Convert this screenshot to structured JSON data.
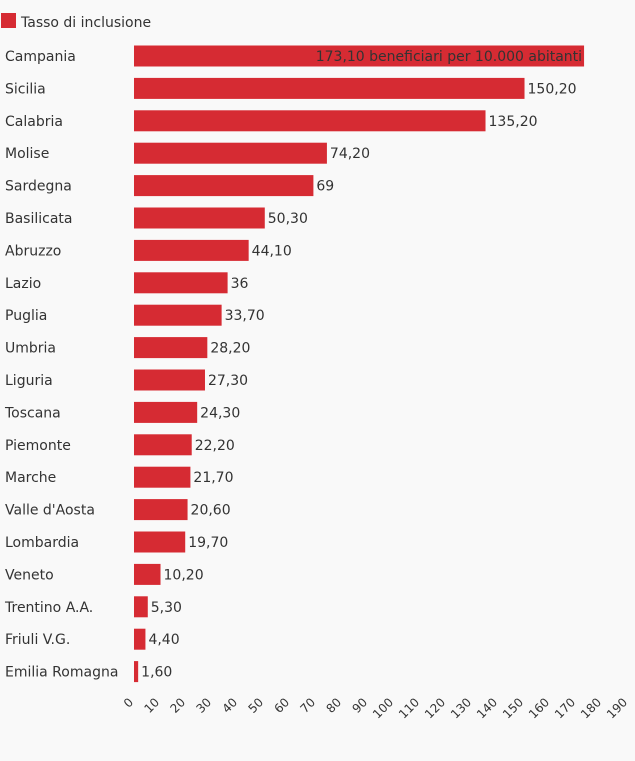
{
  "chart_data": {
    "type": "bar",
    "orientation": "horizontal",
    "legend": {
      "entries": [
        "Tasso di inclusione"
      ],
      "placement": "top-left"
    },
    "colors": {
      "bar": "#d62b33",
      "text": "#333333",
      "background": "#f9f9f9"
    },
    "categories": [
      "Campania",
      "Sicilia",
      "Calabria",
      "Molise",
      "Sardegna",
      "Basilicata",
      "Abruzzo",
      "Lazio",
      "Puglia",
      "Umbria",
      "Liguria",
      "Toscana",
      "Piemonte",
      "Marche",
      "Valle d'Aosta",
      "Lombardia",
      "Veneto",
      "Trentino A.A.",
      "Friuli V.G.",
      "Emilia Romagna"
    ],
    "series": [
      {
        "name": "Tasso di inclusione",
        "values": [
          173.1,
          150.2,
          135.2,
          74.2,
          69,
          50.3,
          44.1,
          36,
          33.7,
          28.2,
          27.3,
          24.3,
          22.2,
          21.7,
          20.6,
          19.7,
          10.2,
          5.3,
          4.4,
          1.6
        ]
      }
    ],
    "data_labels": [
      "173,10 beneficiari per 10.000 abitanti",
      "150,20",
      "135,20",
      "74,20",
      "69",
      "50,30",
      "44,10",
      "36",
      "33,70",
      "28,20",
      "27,30",
      "24,30",
      "22,20",
      "21,70",
      "20,60",
      "19,70",
      "10,20",
      "5,30",
      "4,40",
      "1,60"
    ],
    "x_ticks": [
      "0",
      "10",
      "20",
      "30",
      "40",
      "50",
      "60",
      "70",
      "80",
      "90",
      "100",
      "110",
      "120",
      "130",
      "140",
      "150",
      "160",
      "170",
      "180",
      "190"
    ],
    "xlim": [
      0,
      190
    ],
    "grid": false
  }
}
